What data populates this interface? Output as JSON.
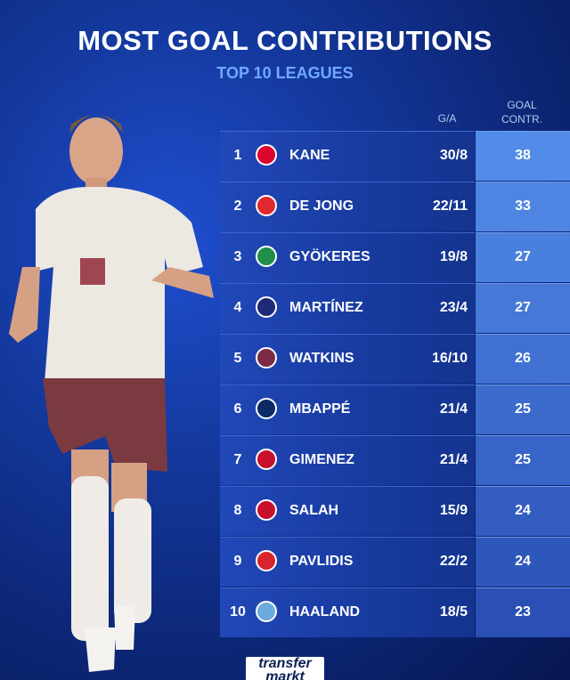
{
  "header": {
    "title": "MOST GOAL CONTRIBUTIONS",
    "subtitle": "TOP 10 LEAGUES"
  },
  "table": {
    "columns": [
      "G/A",
      "GOAL CONTR."
    ],
    "rows": [
      {
        "rank": "1",
        "player": "KANE",
        "ga": "30/8",
        "contributions": "38"
      },
      {
        "rank": "2",
        "player": "DE JONG",
        "ga": "22/11",
        "contributions": "33"
      },
      {
        "rank": "3",
        "player": "GYÖKERES",
        "ga": "19/8",
        "contributions": "27"
      },
      {
        "rank": "4",
        "player": "MARTÍNEZ",
        "ga": "23/4",
        "contributions": "27"
      },
      {
        "rank": "5",
        "player": "WATKINS",
        "ga": "16/10",
        "contributions": "26"
      },
      {
        "rank": "6",
        "player": "MBAPPÉ",
        "ga": "21/4",
        "contributions": "25"
      },
      {
        "rank": "7",
        "player": "GIMENEZ",
        "ga": "21/4",
        "contributions": "25"
      },
      {
        "rank": "8",
        "player": "SALAH",
        "ga": "15/9",
        "contributions": "24"
      },
      {
        "rank": "9",
        "player": "PAVLIDIS",
        "ga": "22/2",
        "contributions": "24"
      },
      {
        "rank": "10",
        "player": "HAALAND",
        "ga": "18/5",
        "contributions": "23"
      }
    ]
  },
  "footer": {
    "logo_top": "transfer",
    "logo_bottom": "markt"
  }
}
